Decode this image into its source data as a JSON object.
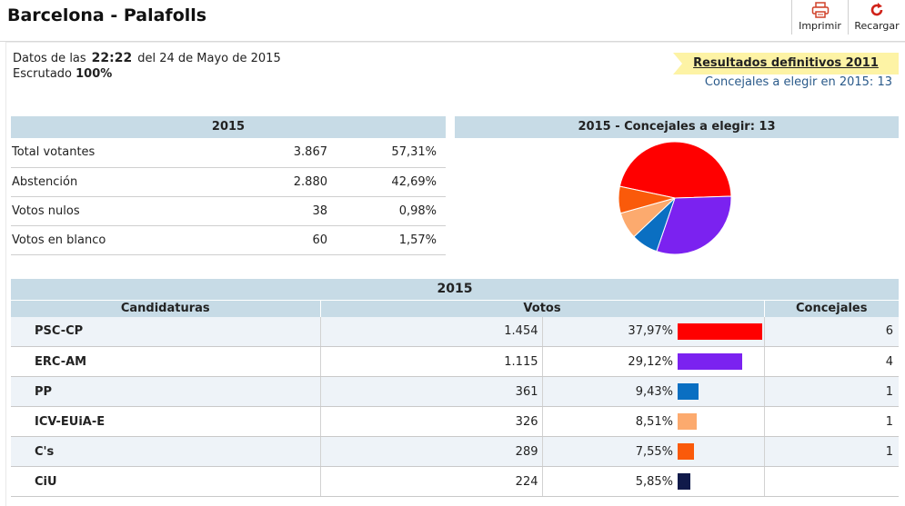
{
  "header": {
    "title": "Barcelona - Palafolls",
    "print_label": "Imprimir",
    "reload_label": "Recargar"
  },
  "info": {
    "datos_prefix": "Datos de las",
    "time": "22:22",
    "date_text": "del 24 de Mayo de 2015",
    "escrutado_label": "Escrutado",
    "escrutado_pct": "100%"
  },
  "links": {
    "previous_results": "Resultados definitivos 2011",
    "concejales_note": "Concejales a elegir en 2015: 13"
  },
  "summary": {
    "title": "2015",
    "rows": [
      {
        "label": "Total votantes",
        "value": "3.867",
        "pct": "57,31%"
      },
      {
        "label": "Abstención",
        "value": "2.880",
        "pct": "42,69%"
      },
      {
        "label": "Votos nulos",
        "value": "38",
        "pct": "0,98%"
      },
      {
        "label": "Votos en blanco",
        "value": "60",
        "pct": "1,57%"
      }
    ]
  },
  "pie": {
    "title": "2015 - Concejales a elegir: 13",
    "slices": [
      {
        "party": "PSC-CP",
        "seats": 6,
        "color": "#ff0000"
      },
      {
        "party": "ERC-AM",
        "seats": 4,
        "color": "#7b22f0"
      },
      {
        "party": "PP",
        "seats": 1,
        "color": "#0a6fc2"
      },
      {
        "party": "ICV-EUiA-E",
        "seats": 1,
        "color": "#fcaa6e"
      },
      {
        "party": "C's",
        "seats": 1,
        "color": "#fa5a0a"
      }
    ]
  },
  "results": {
    "title": "2015",
    "columns": [
      "Candidaturas",
      "Votos",
      "Concejales"
    ],
    "rows": [
      {
        "party": "PSC-CP",
        "votes": "1.454",
        "pct": "37,97%",
        "pct_value": 37.97,
        "seats": "6",
        "color": "#ff0000"
      },
      {
        "party": "ERC-AM",
        "votes": "1.115",
        "pct": "29,12%",
        "pct_value": 29.12,
        "seats": "4",
        "color": "#7b22f0"
      },
      {
        "party": "PP",
        "votes": "361",
        "pct": "9,43%",
        "pct_value": 9.43,
        "seats": "1",
        "color": "#0a6fc2"
      },
      {
        "party": "ICV-EUiA-E",
        "votes": "326",
        "pct": "8,51%",
        "pct_value": 8.51,
        "seats": "1",
        "color": "#fcaa6e"
      },
      {
        "party": "C's",
        "votes": "289",
        "pct": "7,55%",
        "pct_value": 7.55,
        "seats": "1",
        "color": "#fa5a0a"
      },
      {
        "party": "CiU",
        "votes": "224",
        "pct": "5,85%",
        "pct_value": 5.85,
        "seats": "",
        "color": "#101a4a"
      }
    ]
  }
}
